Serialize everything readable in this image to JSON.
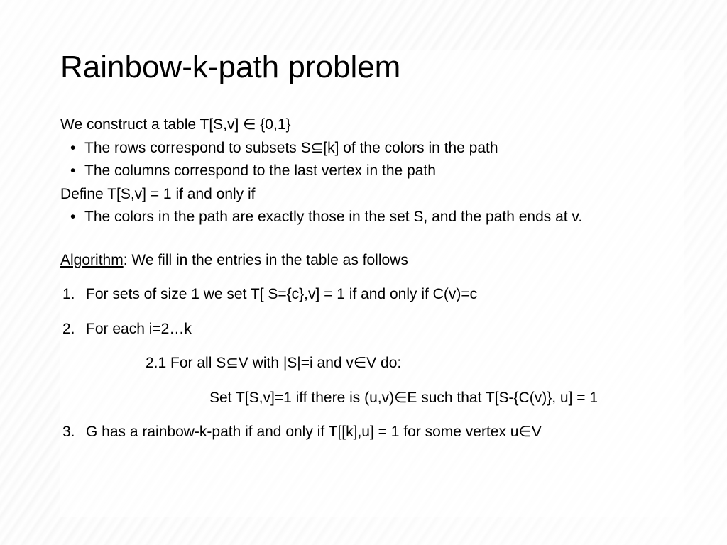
{
  "slide": {
    "title": "Rainbow-k-path problem",
    "title_fontsize": 44,
    "body_fontsize": 21,
    "text_color": "#000000",
    "background_tone": "#f2f2f2",
    "intro_line": "We construct a table T[S,v] ∈ {0,1}",
    "bullets_top": [
      "The rows correspond to subsets S⊆[k] of the colors in the path",
      "The columns correspond to the last vertex in the path"
    ],
    "define_line": "Define T[S,v] = 1 if and only if",
    "bullets_define": [
      "The colors in the path are exactly those in the set S, and the path ends at v."
    ],
    "algorithm_label": "Algorithm",
    "algorithm_rest": ": We fill in the entries in the table as follows",
    "steps": {
      "s1_num": "1.",
      "s1": "For sets of size 1 we set T[ S={c},v] = 1 if and only if C(v)=c",
      "s2_num": "2.",
      "s2": "For each i=2…k",
      "s2_1": "2.1 For all S⊆V with |S|=i and v∈V do:",
      "s2_1_body": "Set T[S,v]=1 iff there is (u,v)∈E such that T[S-{C(v)}, u] = 1",
      "s3_num": "3.",
      "s3": "G has a rainbow-k-path if and only if T[[k],u] = 1 for some vertex u∈V"
    }
  }
}
